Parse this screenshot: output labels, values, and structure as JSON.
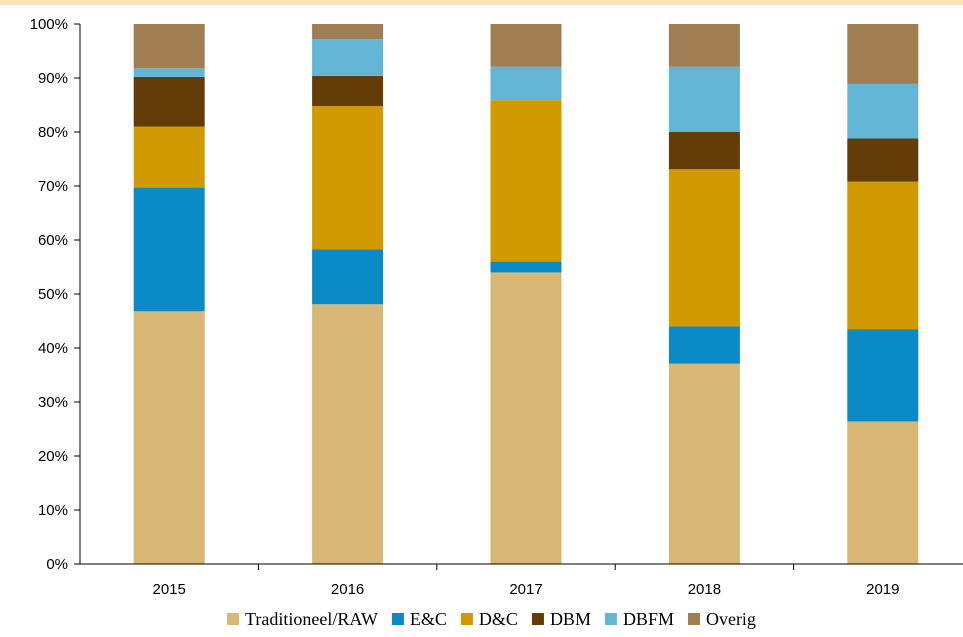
{
  "chart_data": {
    "type": "bar",
    "stacked": true,
    "categories": [
      "2015",
      "2016",
      "2017",
      "2018",
      "2019"
    ],
    "ylim": [
      0,
      100
    ],
    "yticks": [
      "0%",
      "10%",
      "20%",
      "30%",
      "40%",
      "50%",
      "60%",
      "70%",
      "80%",
      "90%",
      "100%"
    ],
    "grid": false,
    "legend_position": "bottom",
    "series": [
      {
        "name": "Traditioneel/RAW",
        "color": "#d8b775",
        "values": [
          46.8,
          48.1,
          54.0,
          37.1,
          26.4
        ]
      },
      {
        "name": "E&C",
        "color": "#0a8ac7",
        "values": [
          22.9,
          10.2,
          2.0,
          6.9,
          17.1
        ]
      },
      {
        "name": "D&C",
        "color": "#d09a00",
        "values": [
          11.3,
          26.5,
          29.9,
          29.1,
          27.3
        ]
      },
      {
        "name": "DBM",
        "color": "#633c07",
        "values": [
          9.2,
          5.6,
          0,
          6.9,
          8.0
        ]
      },
      {
        "name": "DBFM",
        "color": "#62b5d5",
        "values": [
          1.6,
          6.8,
          6.2,
          12.1,
          10.1
        ]
      },
      {
        "name": "Overig",
        "color": "#a07e52",
        "values": [
          8.2,
          2.8,
          7.9,
          7.9,
          11.1
        ]
      }
    ]
  }
}
